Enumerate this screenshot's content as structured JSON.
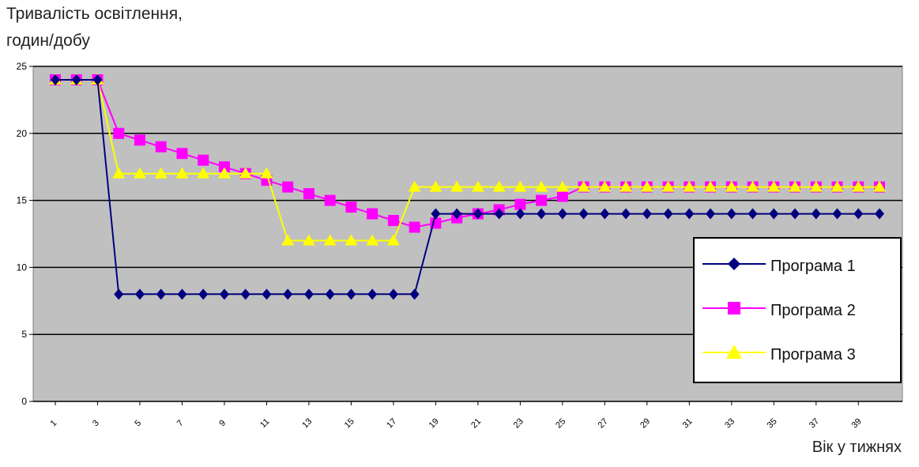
{
  "chart_data": {
    "type": "line",
    "ylabel_line1": "Тривалість освітлення,",
    "ylabel_line2": "годин/добу",
    "xlabel": "Вік у тижнях",
    "x": [
      1,
      2,
      3,
      4,
      5,
      6,
      7,
      8,
      9,
      10,
      11,
      12,
      13,
      14,
      15,
      16,
      17,
      18,
      19,
      20,
      21,
      22,
      23,
      24,
      25,
      26,
      27,
      28,
      29,
      30,
      31,
      32,
      33,
      34,
      35,
      36,
      37,
      38,
      39,
      40
    ],
    "x_tick_labels": [
      "1",
      "3",
      "5",
      "7",
      "9",
      "11",
      "13",
      "15",
      "17",
      "19",
      "21",
      "23",
      "25",
      "27",
      "29",
      "31",
      "33",
      "35",
      "37",
      "39"
    ],
    "ylim": [
      0,
      25
    ],
    "y_ticks": [
      0,
      5,
      10,
      15,
      20,
      25
    ],
    "grid": true,
    "legend_position": "right",
    "series": [
      {
        "name": "Програма 1",
        "color": "#000080",
        "marker": "diamond",
        "values": [
          24,
          24,
          24,
          8,
          8,
          8,
          8,
          8,
          8,
          8,
          8,
          8,
          8,
          8,
          8,
          8,
          8,
          8,
          14,
          14,
          14,
          14,
          14,
          14,
          14,
          14,
          14,
          14,
          14,
          14,
          14,
          14,
          14,
          14,
          14,
          14,
          14,
          14,
          14,
          14
        ]
      },
      {
        "name": "Програма 2",
        "color": "#ff00ff",
        "marker": "square",
        "values": [
          24,
          24,
          24,
          20,
          19.5,
          19,
          18.5,
          18,
          17.5,
          17,
          16.5,
          16,
          15.5,
          15,
          14.5,
          14,
          13.5,
          13,
          13.3,
          13.7,
          14,
          14.3,
          14.7,
          15,
          15.3,
          16,
          16,
          16,
          16,
          16,
          16,
          16,
          16,
          16,
          16,
          16,
          16,
          16,
          16,
          16
        ]
      },
      {
        "name": "Програма 3",
        "color": "#ffff00",
        "marker": "triangle",
        "values": [
          24,
          24,
          24,
          17,
          17,
          17,
          17,
          17,
          17,
          17,
          17,
          12,
          12,
          12,
          12,
          12,
          12,
          16,
          16,
          16,
          16,
          16,
          16,
          16,
          16,
          16,
          16,
          16,
          16,
          16,
          16,
          16,
          16,
          16,
          16,
          16,
          16,
          16,
          16,
          16
        ]
      }
    ]
  }
}
